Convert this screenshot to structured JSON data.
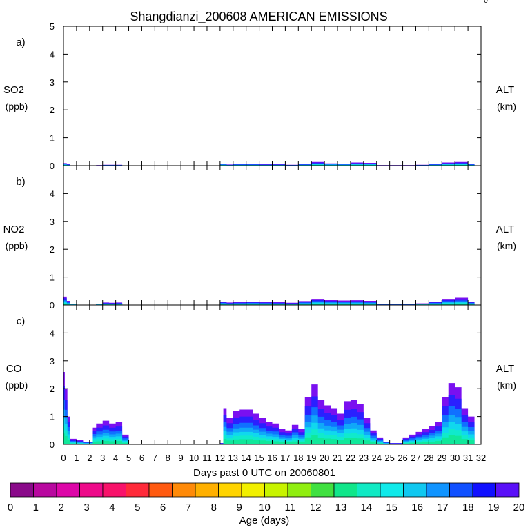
{
  "figure": {
    "title": "Shangdianzi_200608 AMERICAN EMISSIONS",
    "corner_mark": "0",
    "xlabel": "Days past 0 UTC on 20060801",
    "colorbar_label": "Age (days)"
  },
  "chart_data": [
    {
      "type": "area",
      "panel": "a)",
      "ylabel": "SO2",
      "yunit": "(ppb)",
      "right_label": "ALT",
      "right_unit": "(km)",
      "ylim": [
        0,
        5
      ],
      "yticks": [
        "0",
        "1",
        "2",
        "3",
        "4",
        "5"
      ],
      "xlim": [
        0,
        32
      ],
      "x": [
        0,
        0.25,
        0.5,
        2.5,
        3,
        3.5,
        4,
        4.5,
        12,
        12.5,
        13,
        14,
        15,
        16,
        17,
        18,
        19,
        20,
        21,
        22,
        23,
        24,
        27,
        28,
        29,
        30,
        31,
        31.5
      ],
      "values": [
        0.09,
        0.05,
        0.0,
        0.02,
        0.03,
        0.03,
        0.03,
        0.0,
        0.07,
        0.04,
        0.06,
        0.06,
        0.05,
        0.05,
        0.03,
        0.06,
        0.13,
        0.08,
        0.07,
        0.11,
        0.1,
        0.02,
        0.03,
        0.06,
        0.11,
        0.13,
        0.06,
        0.0
      ]
    },
    {
      "type": "area",
      "panel": "b)",
      "ylabel": "NO2",
      "yunit": "(ppb)",
      "right_label": "ALT",
      "right_unit": "(km)",
      "ylim": [
        0,
        5
      ],
      "yticks": [
        "0",
        "1",
        "2",
        "3",
        "4"
      ],
      "xlim": [
        0,
        32
      ],
      "x": [
        0,
        0.25,
        0.5,
        1,
        2.5,
        3,
        3.5,
        4,
        4.5,
        12,
        12.5,
        13,
        14,
        15,
        16,
        17,
        18,
        19,
        20,
        21,
        22,
        23,
        24,
        27,
        28,
        29,
        30,
        31,
        31.5
      ],
      "values": [
        0.3,
        0.15,
        0.05,
        0.0,
        0.05,
        0.09,
        0.08,
        0.09,
        0.0,
        0.12,
        0.09,
        0.11,
        0.12,
        0.11,
        0.1,
        0.08,
        0.14,
        0.22,
        0.18,
        0.16,
        0.17,
        0.15,
        0.03,
        0.06,
        0.12,
        0.22,
        0.26,
        0.12,
        0.0
      ]
    },
    {
      "type": "area",
      "panel": "c)",
      "ylabel": "CO",
      "yunit": "(ppb)",
      "right_label": "ALT",
      "right_unit": "(km)",
      "ylim": [
        0,
        5
      ],
      "yticks": [
        "0",
        "1",
        "2",
        "3",
        "4"
      ],
      "xlim": [
        0,
        32
      ],
      "x": [
        0,
        0.1,
        0.3,
        0.5,
        1,
        1.5,
        2,
        2.25,
        2.5,
        3,
        3.5,
        4,
        4.5,
        5,
        12,
        12.25,
        12.5,
        13,
        13.5,
        14,
        14.5,
        15,
        15.5,
        16,
        16.5,
        17,
        17.5,
        18,
        18.5,
        19,
        19.5,
        20,
        20.5,
        21,
        21.5,
        22,
        22.5,
        23,
        23.5,
        24,
        24.5,
        25,
        25.5,
        26,
        26.5,
        27,
        27.5,
        28,
        28.5,
        29,
        29.5,
        30,
        30.5,
        31,
        31.5
      ],
      "values": [
        2.6,
        2.0,
        1.0,
        0.2,
        0.15,
        0.1,
        0.1,
        0.6,
        0.75,
        0.85,
        0.75,
        0.8,
        0.35,
        0.0,
        0.05,
        1.3,
        0.95,
        1.2,
        1.25,
        1.25,
        1.1,
        0.95,
        0.8,
        0.75,
        0.55,
        0.5,
        0.7,
        0.55,
        1.7,
        2.15,
        1.6,
        1.4,
        1.3,
        1.1,
        1.55,
        1.6,
        1.45,
        0.95,
        0.5,
        0.25,
        0.1,
        0.05,
        0.05,
        0.25,
        0.35,
        0.45,
        0.55,
        0.65,
        0.8,
        1.7,
        2.2,
        2.05,
        1.3,
        1.0,
        0.8
      ]
    }
  ],
  "x_ticks": [
    "0",
    "1",
    "2",
    "3",
    "4",
    "5",
    "6",
    "7",
    "8",
    "9",
    "10",
    "11",
    "12",
    "13",
    "14",
    "15",
    "16",
    "17",
    "18",
    "19",
    "20",
    "21",
    "22",
    "23",
    "24",
    "25",
    "26",
    "27",
    "28",
    "29",
    "30",
    "31",
    "32"
  ],
  "colorbar": {
    "ticks": [
      "0",
      "1",
      "2",
      "3",
      "4",
      "5",
      "6",
      "7",
      "8",
      "9",
      "10",
      "11",
      "12",
      "13",
      "14",
      "15",
      "16",
      "17",
      "18",
      "19",
      "20"
    ],
    "colors": [
      "#8a0a8a",
      "#b8089f",
      "#dd06a8",
      "#ee0a8a",
      "#f8126a",
      "#ff2a3a",
      "#ff5a10",
      "#ff8a08",
      "#ffb000",
      "#ffd400",
      "#f2f000",
      "#c8f400",
      "#90ee10",
      "#40e040",
      "#10e68a",
      "#10eac4",
      "#10eaea",
      "#10c8f0",
      "#1094ff",
      "#1050ff",
      "#1010ff",
      "#5a10f8"
    ]
  }
}
